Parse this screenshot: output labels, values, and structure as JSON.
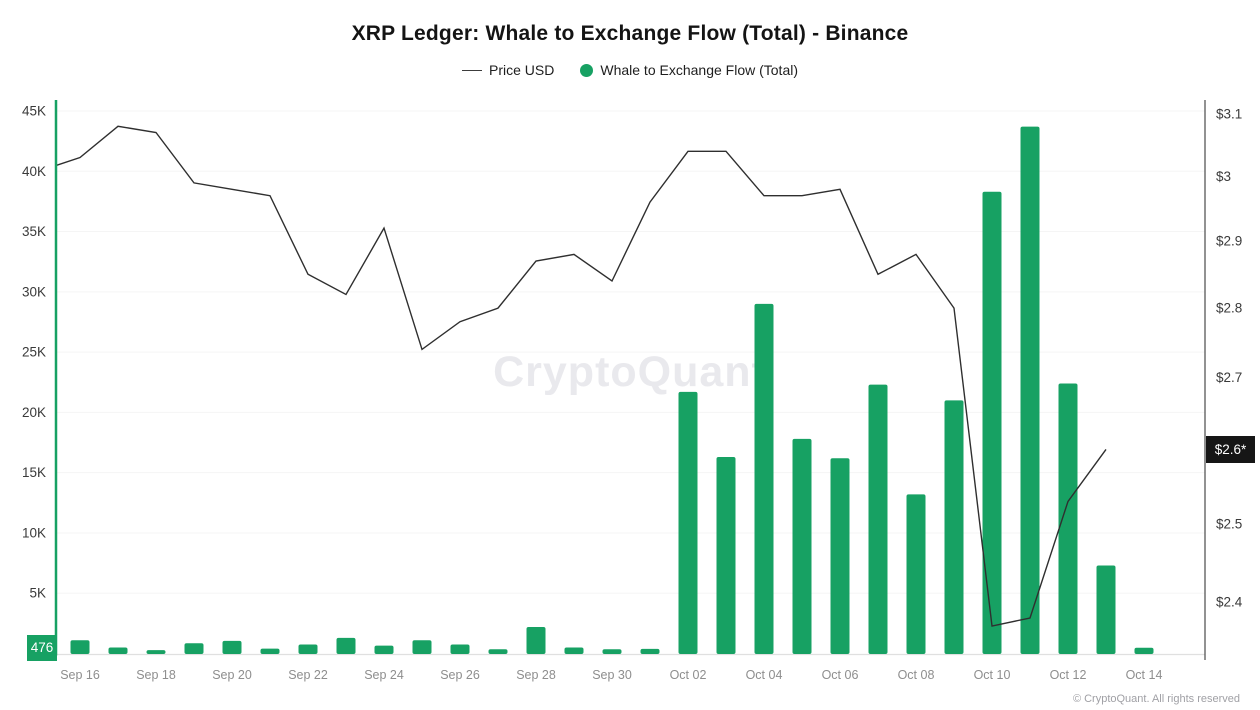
{
  "title": "XRP Ledger: Whale to Exchange Flow (Total) - Binance",
  "legend": [
    {
      "label": "Price USD",
      "swatch": "line"
    },
    {
      "label": "Whale to Exchange Flow (Total)",
      "swatch": "dot"
    }
  ],
  "watermark": {
    "text": "CryptoQuant"
  },
  "footer": {
    "text": "© CryptoQuant. All rights reserved"
  },
  "badges": {
    "flow_current": "476",
    "price_current": "$2.6*"
  },
  "colors": {
    "green": "#17a163",
    "price_line": "#2f2f2f",
    "badge_dark": "#161616"
  },
  "chart_data": {
    "type": "combo",
    "title": "XRP Ledger: Whale to Exchange Flow (Total) - Binance",
    "dates": [
      "Sep 15",
      "Sep 16",
      "Sep 17",
      "Sep 18",
      "Sep 19",
      "Sep 20",
      "Sep 21",
      "Sep 22",
      "Sep 23",
      "Sep 24",
      "Sep 25",
      "Sep 26",
      "Sep 27",
      "Sep 28",
      "Sep 29",
      "Sep 30",
      "Oct 01",
      "Oct 02",
      "Oct 03",
      "Oct 04",
      "Oct 05",
      "Oct 06",
      "Oct 07",
      "Oct 08",
      "Oct 09",
      "Oct 10",
      "Oct 11",
      "Oct 12",
      "Oct 13",
      "Oct 14"
    ],
    "x_tick_labels": [
      "Sep 16",
      "Sep 18",
      "Sep 20",
      "Sep 22",
      "Sep 24",
      "Sep 26",
      "Sep 28",
      "Sep 30",
      "Oct 02",
      "Oct 04",
      "Oct 06",
      "Oct 08",
      "Oct 10",
      "Oct 12",
      "Oct 14"
    ],
    "left_axis": {
      "series": "Whale to Exchange Flow (Total)",
      "scale": "linear",
      "min": 0,
      "max": 45000,
      "tick_values": [
        5000,
        10000,
        15000,
        20000,
        25000,
        30000,
        35000,
        40000,
        45000
      ],
      "tick_labels": [
        "5K",
        "10K",
        "15K",
        "20K",
        "25K",
        "30K",
        "35K",
        "40K",
        "45K"
      ],
      "current_value": 476
    },
    "right_axis": {
      "series": "Price USD",
      "scale": "log",
      "top_value": 3.1,
      "bottom_value": 2.4,
      "tick_values": [
        3.1,
        3.0,
        2.9,
        2.8,
        2.7,
        2.5,
        2.4
      ],
      "tick_labels": [
        "$3.1",
        "$3",
        "$2.9",
        "$2.8",
        "$2.7",
        "$2.5",
        "$2.4"
      ],
      "current_value": 2.6,
      "current_label": "$2.6*"
    },
    "series": [
      {
        "name": "Whale to Exchange Flow (Total)",
        "type": "bar",
        "axis": "left",
        "x": [
          "Sep 16",
          "Sep 17",
          "Sep 18",
          "Sep 19",
          "Sep 20",
          "Sep 21",
          "Sep 22",
          "Sep 23",
          "Sep 24",
          "Sep 25",
          "Sep 26",
          "Sep 27",
          "Sep 28",
          "Sep 29",
          "Sep 30",
          "Oct 01",
          "Oct 02",
          "Oct 03",
          "Oct 04",
          "Oct 05",
          "Oct 06",
          "Oct 07",
          "Oct 08",
          "Oct 09",
          "Oct 10",
          "Oct 11",
          "Oct 12",
          "Oct 13",
          "Oct 14"
        ],
        "values": [
          1100,
          500,
          280,
          850,
          1050,
          400,
          750,
          1300,
          650,
          1100,
          750,
          350,
          2200,
          500,
          350,
          380,
          21700,
          16300,
          29000,
          17800,
          16200,
          22300,
          13200,
          21000,
          38300,
          43700,
          22400,
          7300,
          476
        ]
      },
      {
        "name": "Price USD",
        "type": "line",
        "axis": "right",
        "x": [
          "Sep 15",
          "Sep 16",
          "Sep 17",
          "Sep 18",
          "Sep 19",
          "Sep 20",
          "Sep 21",
          "Sep 22",
          "Sep 23",
          "Sep 24",
          "Sep 25",
          "Sep 26",
          "Sep 27",
          "Sep 28",
          "Sep 29",
          "Sep 30",
          "Oct 01",
          "Oct 02",
          "Oct 03",
          "Oct 04",
          "Oct 05",
          "Oct 06",
          "Oct 07",
          "Oct 08",
          "Oct 09",
          "Oct 10",
          "Oct 11",
          "Oct 12",
          "Oct 13"
        ],
        "values": [
          3.01,
          3.03,
          3.08,
          3.07,
          2.99,
          2.98,
          2.97,
          2.85,
          2.82,
          2.92,
          2.74,
          2.78,
          2.8,
          2.87,
          2.88,
          2.84,
          2.96,
          3.04,
          3.04,
          2.97,
          2.97,
          2.98,
          2.85,
          2.88,
          2.8,
          2.37,
          2.38,
          2.53,
          2.6
        ]
      }
    ],
    "legend_position": "top",
    "grid": "faint-horizontal"
  }
}
